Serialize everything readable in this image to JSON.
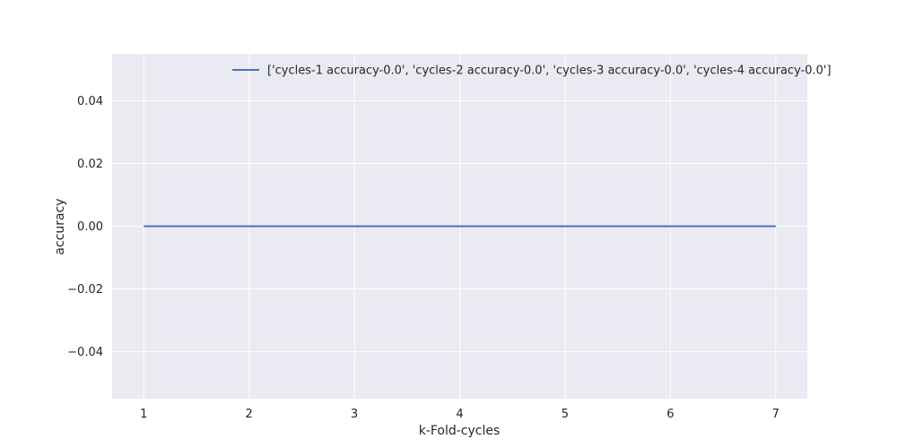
{
  "chart_data": {
    "type": "line",
    "title": "",
    "xlabel": "k-Fold-cycles",
    "ylabel": "accuracy",
    "x": [
      1,
      2,
      3,
      4,
      5,
      6,
      7
    ],
    "xticks": [
      "1",
      "2",
      "3",
      "4",
      "5",
      "6",
      "7"
    ],
    "xlim": [
      0.7,
      7.3
    ],
    "ylim": [
      -0.055,
      0.055
    ],
    "yticks": [
      "0.04",
      "0.02",
      "0.00",
      "−0.02",
      "−0.04"
    ],
    "ytick_values": [
      0.04,
      0.02,
      0.0,
      -0.02,
      -0.04
    ],
    "grid": true,
    "legend_position": "top-right",
    "series": [
      {
        "name": "['cycles-1 accuracy-0.0', 'cycles-2 accuracy-0.0', 'cycles-3 accuracy-0.0', 'cycles-4 accuracy-0.0']",
        "color": "#4c72b0",
        "values": [
          0.0,
          0.0,
          0.0,
          0.0,
          0.0,
          0.0,
          0.0
        ]
      }
    ]
  },
  "colors": {
    "plot_background": "#eaeaf2",
    "grid": "#ffffff",
    "text": "#262626"
  }
}
